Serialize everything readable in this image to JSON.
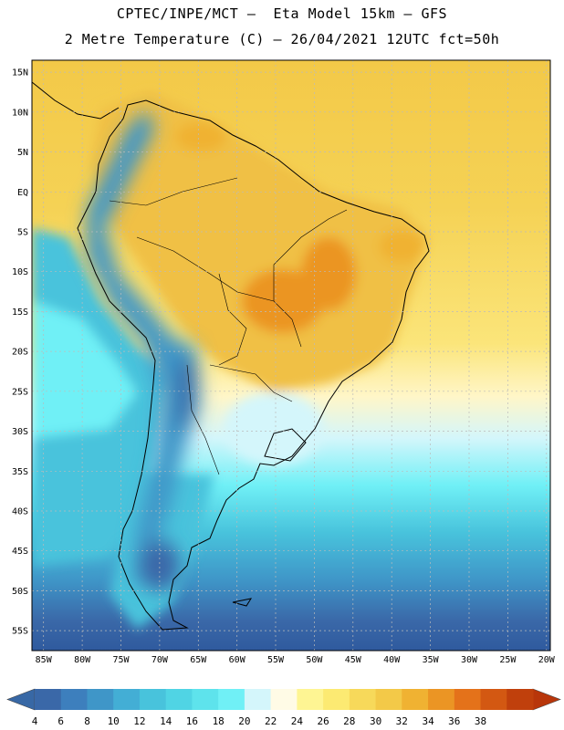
{
  "header": {
    "title_line_1": "CPTEC/INPE/MCT –  Eta Model 15km – GFS",
    "title_line_2": "2 Metre Temperature (C) – 26/04/2021 12UTC fct=50h"
  },
  "map": {
    "lat_labels": [
      "15N",
      "10N",
      "5N",
      "EQ",
      "5S",
      "10S",
      "15S",
      "20S",
      "25S",
      "30S",
      "35S",
      "40S",
      "45S",
      "50S",
      "55S"
    ],
    "lon_labels": [
      "85W",
      "80W",
      "75W",
      "70W",
      "65W",
      "60W",
      "55W",
      "50W",
      "45W",
      "40W",
      "35W",
      "30W",
      "25W",
      "20W"
    ],
    "lat_range": [
      -57.5,
      16.5
    ],
    "lon_range": [
      -86.5,
      -19.5
    ]
  },
  "colorbar": {
    "ticks": [
      "4",
      "6",
      "8",
      "10",
      "12",
      "14",
      "16",
      "18",
      "20",
      "22",
      "24",
      "26",
      "28",
      "30",
      "32",
      "34",
      "36",
      "38"
    ],
    "colors": [
      "#3a68a8",
      "#3d7fbd",
      "#3f96c8",
      "#43aed5",
      "#48c3dc",
      "#50d4e4",
      "#5ee3ec",
      "#70f0f6",
      "#d4f6fb",
      "#fffbe6",
      "#fef593",
      "#fcea72",
      "#f7d95a",
      "#f3c948",
      "#f0b232",
      "#eb9524",
      "#e4721a",
      "#d35812",
      "#c0400c"
    ],
    "end_colors": {
      "low": "#3868a5",
      "high": "#b8360a"
    }
  },
  "colors": {
    "ocean_south": "#2f5a9e",
    "land_warm": "#f3c948",
    "andes": "#3f96c8"
  }
}
